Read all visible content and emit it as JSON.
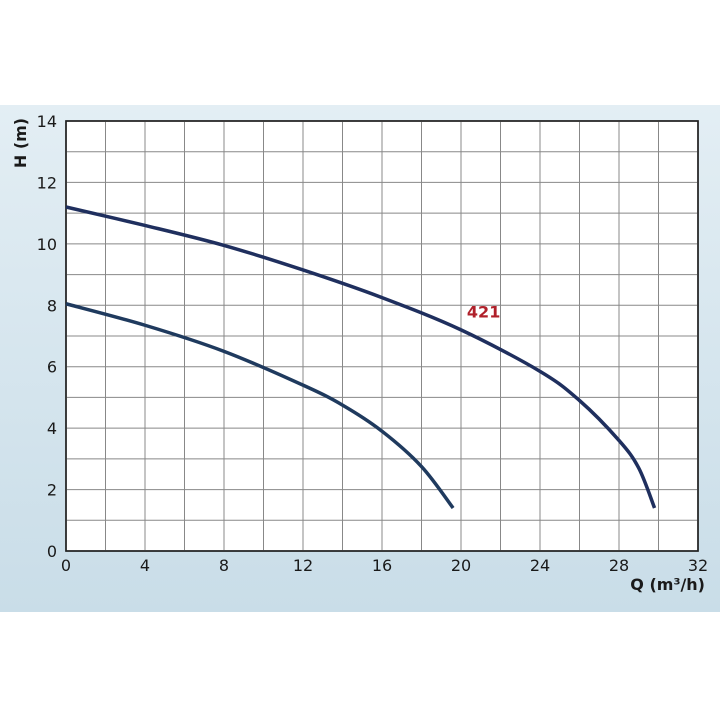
{
  "chart_data": {
    "type": "line",
    "x_label": "Q (m³/h)",
    "y_label": "H (m)",
    "xlim": [
      0,
      32
    ],
    "xticks": [
      0,
      4,
      8,
      12,
      16,
      20,
      24,
      28,
      32
    ],
    "ylim": [
      0,
      14
    ],
    "yticks": [
      0,
      2,
      4,
      6,
      8,
      10,
      12,
      14
    ],
    "xgrid": [
      0,
      2,
      4,
      6,
      8,
      10,
      12,
      14,
      16,
      18,
      20,
      22,
      24,
      26,
      28,
      30,
      32
    ],
    "ygrid": [
      0,
      1,
      2,
      3,
      4,
      5,
      6,
      7,
      8,
      9,
      10,
      11,
      12,
      13,
      14
    ],
    "grid": true,
    "series": [
      {
        "color": "#1f2f5e",
        "x": [
          0,
          4,
          8,
          12,
          16,
          20,
          24,
          26,
          28,
          29,
          29.8
        ],
        "values": [
          11.2,
          10.6,
          9.95,
          9.15,
          8.25,
          7.2,
          5.85,
          4.9,
          3.6,
          2.7,
          1.4
        ]
      },
      {
        "color": "#1f3a5e",
        "x": [
          0,
          4,
          8,
          12,
          14,
          16,
          18,
          19.6
        ],
        "values": [
          8.05,
          7.35,
          6.5,
          5.4,
          4.75,
          3.9,
          2.75,
          1.4
        ]
      }
    ],
    "annotations": [
      {
        "text": "421",
        "x": 20.3,
        "y": 7.6,
        "color": "#b0202a"
      }
    ]
  }
}
